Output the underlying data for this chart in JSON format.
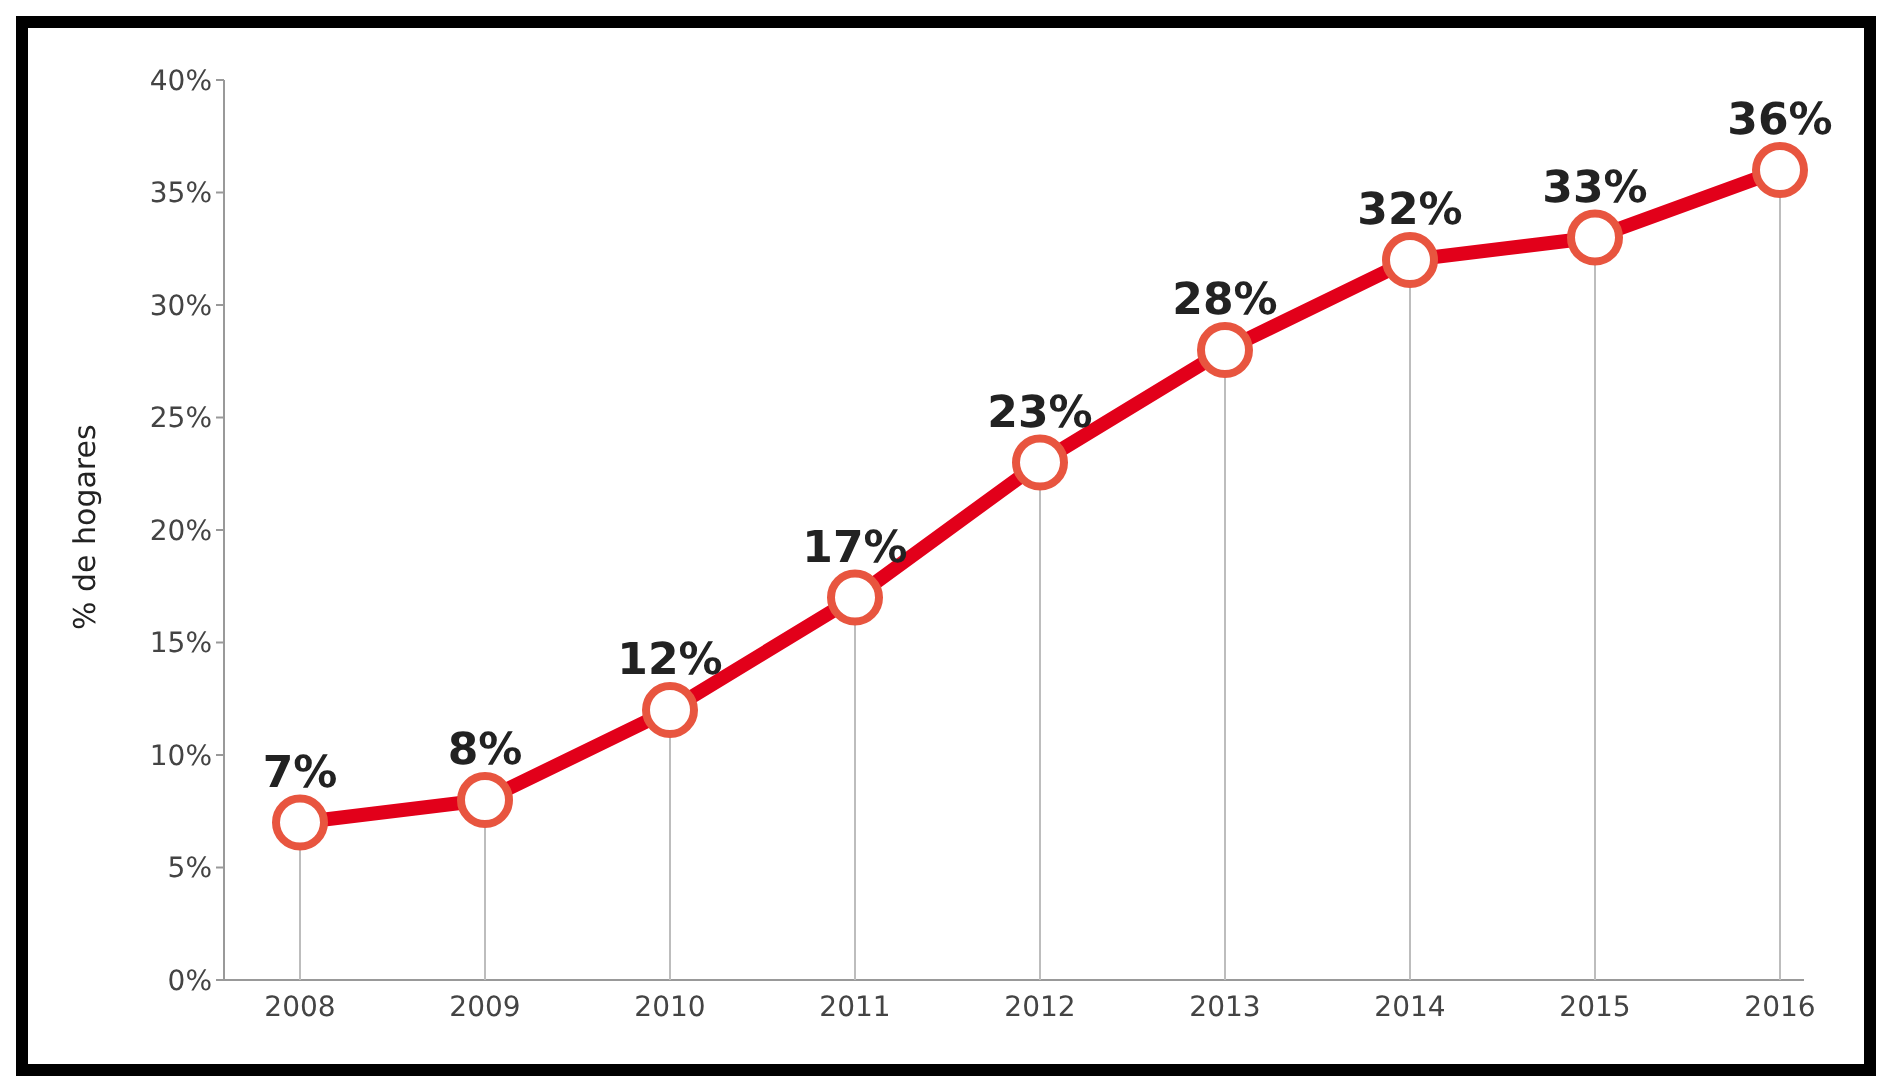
{
  "chart_data": {
    "type": "line",
    "ylabel": "% de hogares",
    "categories": [
      "2008",
      "2009",
      "2010",
      "2011",
      "2012",
      "2013",
      "2014",
      "2015",
      "2016"
    ],
    "series": [
      {
        "color": "#e2001a",
        "values": [
          7,
          8,
          12,
          17,
          23,
          28,
          32,
          33,
          36
        ],
        "value_labels": [
          "7%",
          "8%",
          "12%",
          "17%",
          "23%",
          "28%",
          "32%",
          "33%",
          "36%"
        ]
      }
    ],
    "ylim": [
      0,
      40
    ],
    "yticks": [
      {
        "value": 0,
        "label": "0%"
      },
      {
        "value": 5,
        "label": "5%"
      },
      {
        "value": 10,
        "label": "10%"
      },
      {
        "value": 15,
        "label": "15%"
      },
      {
        "value": 20,
        "label": "20%"
      },
      {
        "value": 25,
        "label": "25%"
      },
      {
        "value": 30,
        "label": "30%"
      },
      {
        "value": 35,
        "label": "35%"
      },
      {
        "value": 40,
        "label": "40%"
      }
    ],
    "grid": "x",
    "legend": false,
    "marker": "circle",
    "line_style": "solid"
  }
}
